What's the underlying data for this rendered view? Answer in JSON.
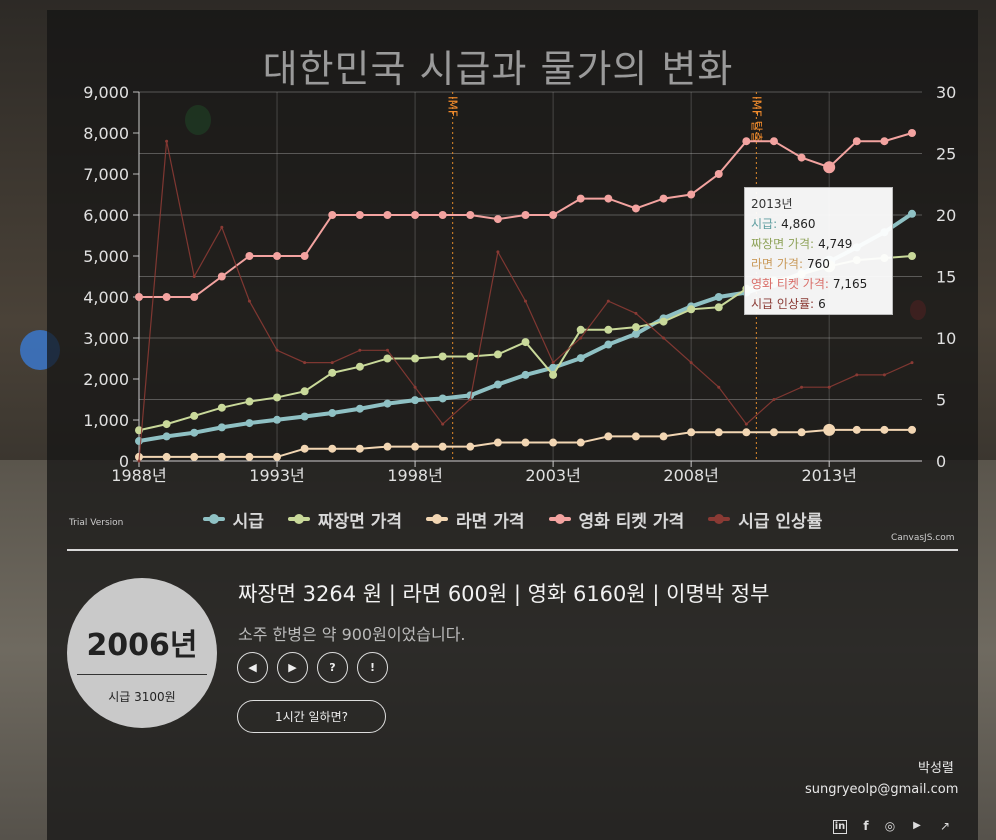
{
  "chart_data": {
    "type": "line",
    "title": "대한민국 시급과 물가의 변화",
    "x_start": 1988,
    "x_end": 2016,
    "x_ticks": [
      "1988년",
      "1993년",
      "1998년",
      "2003년",
      "2008년",
      "2013년"
    ],
    "x_tick_years": [
      1988,
      1993,
      1998,
      2003,
      2008,
      2013
    ],
    "ylim_left": [
      0,
      9000
    ],
    "y_ticks_left": [
      "0",
      "1,000",
      "2,000",
      "3,000",
      "4,000",
      "5,000",
      "6,000",
      "7,000",
      "8,000",
      "9,000"
    ],
    "ylim_right": [
      0,
      30
    ],
    "y_ticks_right": [
      "0",
      "5",
      "10",
      "15",
      "20",
      "25",
      "30"
    ],
    "annotations": [
      {
        "label": "IMF",
        "year": 1999
      },
      {
        "label": "IMF 탈출",
        "year": 2010
      }
    ],
    "years": [
      1988,
      1989,
      1990,
      1991,
      1992,
      1993,
      1994,
      1995,
      1996,
      1997,
      1998,
      1999,
      2000,
      2001,
      2002,
      2003,
      2004,
      2005,
      2006,
      2007,
      2008,
      2009,
      2010,
      2011,
      2012,
      2013,
      2014,
      2015,
      2016
    ],
    "series": [
      {
        "name": "시급",
        "axis": "left",
        "color": "#8fc1c4",
        "values": [
          487,
          600,
          690,
          820,
          925,
          1005,
          1085,
          1170,
          1275,
          1400,
          1485,
          1525,
          1600,
          1865,
          2100,
          2275,
          2510,
          2840,
          3100,
          3480,
          3770,
          4000,
          4110,
          4320,
          4580,
          4860,
          5210,
          5580,
          6030
        ]
      },
      {
        "name": "짜장면 가격",
        "axis": "left",
        "color": "#c9d99a",
        "values": [
          750,
          900,
          1100,
          1300,
          1450,
          1550,
          1700,
          2150,
          2300,
          2500,
          2500,
          2550,
          2550,
          2600,
          2900,
          2100,
          3200,
          3200,
          3264,
          3400,
          3700,
          3750,
          4200,
          4400,
          4550,
          4749,
          4900,
          4950,
          5000
        ]
      },
      {
        "name": "라면 가격",
        "axis": "left",
        "color": "#f2d6b3",
        "values": [
          100,
          100,
          100,
          100,
          100,
          100,
          300,
          300,
          300,
          350,
          350,
          350,
          350,
          450,
          450,
          450,
          450,
          600,
          600,
          600,
          700,
          700,
          700,
          700,
          700,
          760,
          760,
          760,
          760
        ]
      },
      {
        "name": "영화 티켓 가격",
        "axis": "left",
        "color": "#f3a3a0",
        "values": [
          4000,
          4000,
          4000,
          4500,
          5000,
          5000,
          5000,
          6000,
          6000,
          6000,
          6000,
          6000,
          6000,
          5900,
          6000,
          6000,
          6400,
          6400,
          6160,
          6400,
          6500,
          7000,
          7800,
          7800,
          7400,
          7165,
          7800,
          7800,
          8000
        ]
      },
      {
        "name": "시급 인상률",
        "axis": "right",
        "color": "#8a3a34",
        "values": [
          0,
          26,
          15,
          19,
          13,
          9,
          8,
          8,
          9,
          9,
          6,
          3,
          5,
          17,
          13,
          8,
          10,
          13,
          12,
          10,
          8,
          6,
          3,
          5,
          6,
          6,
          7,
          7,
          8
        ]
      }
    ],
    "legend_position": "bottom",
    "grid": true,
    "highlight_year": 2013
  },
  "tooltip": {
    "title": "2013년",
    "rows": [
      {
        "label": "시급:",
        "value": "4,860",
        "color": "#5f9ea0"
      },
      {
        "label": "짜장면 가격:",
        "value": "4,749",
        "color": "#8fa35a"
      },
      {
        "label": "라면 가격:",
        "value": "760",
        "color": "#c99a5a"
      },
      {
        "label": "영화 티켓 가격:",
        "value": "7,165",
        "color": "#d96d68"
      },
      {
        "label": "시급 인상률:",
        "value": "6",
        "color": "#8a3a34"
      }
    ]
  },
  "trial_text": "Trial Version",
  "credit_text": "CanvasJS.com",
  "info": {
    "year": "2006년",
    "wage": "시급 3100원",
    "headline": "짜장면 3264 원 | 라면 600원 | 영화 6160원 | 이명박 정부",
    "subline": "소주 한병은 약 900원이었습니다.",
    "hour_button": "1시간 일하면?"
  },
  "controls": {
    "prev": "◀",
    "next": "▶",
    "help": "?",
    "info": "!"
  },
  "author": "박성렬",
  "email": "sungryeolp@gmail.com",
  "social": [
    {
      "name": "linkedin-icon",
      "glyph": "in"
    },
    {
      "name": "facebook-icon",
      "glyph": "f"
    },
    {
      "name": "instagram-icon",
      "glyph": "◎"
    },
    {
      "name": "youtube-icon",
      "glyph": "▶"
    },
    {
      "name": "external-link-icon",
      "glyph": "↗"
    }
  ]
}
